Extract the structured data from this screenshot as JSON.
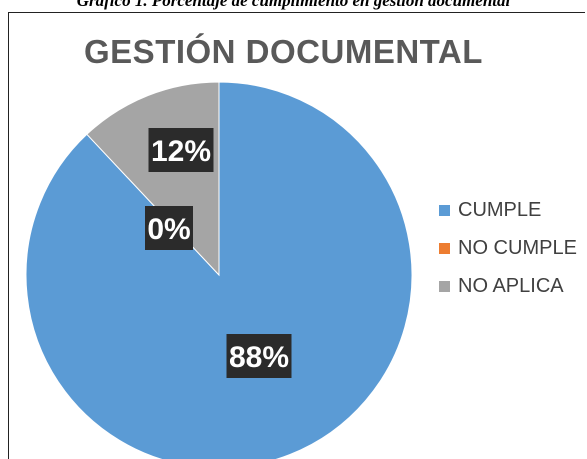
{
  "caption": "Gráfico 1. Porcentaje de cumplimiento en gestión documental",
  "chart_data": {
    "type": "pie",
    "title": "GESTIÓN DOCUMENTAL",
    "categories": [
      "CUMPLE",
      "NO CUMPLE",
      "NO APLICA"
    ],
    "values": [
      88,
      0,
      12
    ],
    "labels": [
      "88%",
      "0%",
      "12%"
    ],
    "colors": [
      "#5B9BD5",
      "#ED7D31",
      "#A5A5A5"
    ],
    "legend": "right"
  }
}
